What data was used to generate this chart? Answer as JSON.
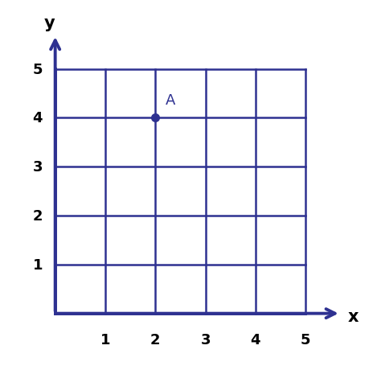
{
  "axis_color": "#2E3191",
  "grid_color": "#2E3191",
  "point_x": 2,
  "point_y": 4,
  "point_label": "A",
  "point_color": "#2E3191",
  "point_size": 7,
  "x_ticks": [
    1,
    2,
    3,
    4,
    5
  ],
  "y_ticks": [
    1,
    2,
    3,
    4,
    5
  ],
  "x_label": "x",
  "y_label": "y",
  "xlim": [
    -0.5,
    6.2
  ],
  "ylim": [
    -0.7,
    6.2
  ],
  "grid_lw": 1.8,
  "axis_lw": 2.8,
  "label_fontsize": 15,
  "tick_fontsize": 13,
  "point_label_fontsize": 13,
  "background_color": "#ffffff",
  "tick_label_color": "#000000",
  "arrow_mutation_scale": 20
}
